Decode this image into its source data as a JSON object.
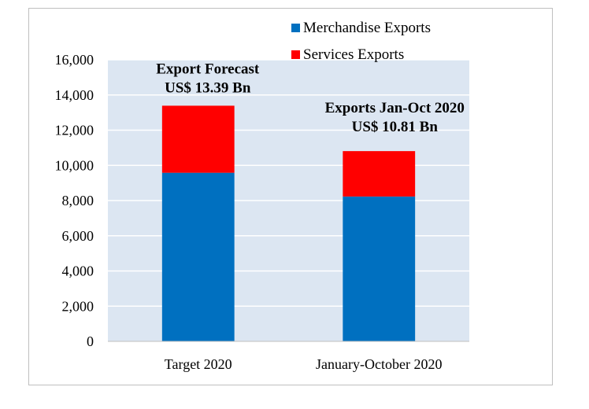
{
  "chart_data": {
    "type": "bar",
    "stacked": true,
    "categories": [
      "Target 2020",
      "January-October 2020"
    ],
    "series": [
      {
        "name": "Merchandise Exports",
        "color": "#0070C0",
        "values": [
          9580,
          8230
        ]
      },
      {
        "name": "Services Exports",
        "color": "#FF0000",
        "values": [
          3810,
          2580
        ]
      }
    ],
    "ylim": [
      0,
      16000
    ],
    "yticks": [
      0,
      2000,
      4000,
      6000,
      8000,
      10000,
      12000,
      14000,
      16000
    ],
    "ytick_labels": [
      "0",
      "2,000",
      "4,000",
      "6,000",
      "8,000",
      "10,000",
      "12,000",
      "14,000",
      "16,000"
    ],
    "grid": true,
    "plot_background": "#DCE6F2",
    "legend_position": "top-right",
    "annotations": [
      {
        "lines": [
          "Export Forecast",
          "US$ 13.39 Bn"
        ],
        "category": "Target 2020"
      },
      {
        "lines": [
          "Exports Jan-Oct 2020",
          "US$ 10.81 Bn"
        ],
        "category": "January-October 2020"
      }
    ]
  }
}
